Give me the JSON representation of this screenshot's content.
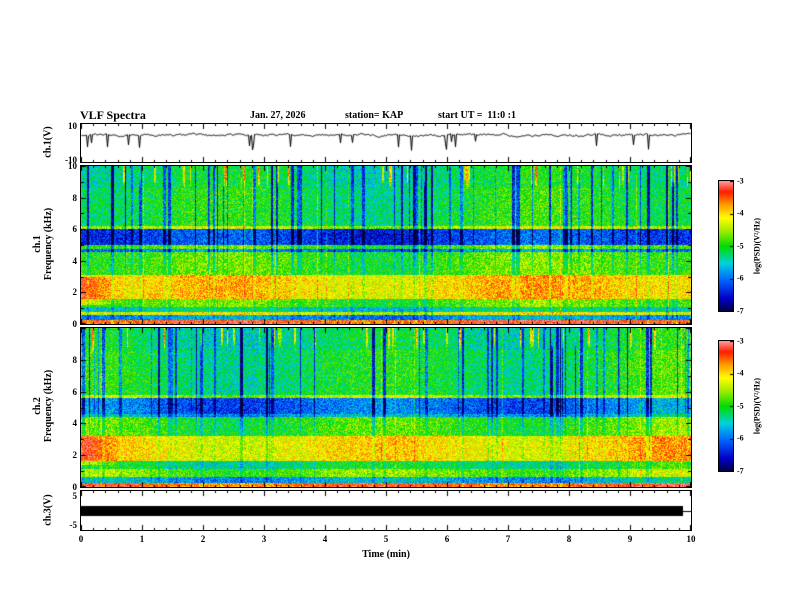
{
  "header": {
    "title": "VLF Spectra",
    "date": "Jan. 27, 2026",
    "station": "station= KAP",
    "start_ut": "start UT =  11:0 :1"
  },
  "axes": {
    "ch1_wave": {
      "label": "ch.1(V)",
      "top_tick": "10",
      "bottom_tick": "-10"
    },
    "spec1": {
      "channel": "ch.1",
      "freq_label": "Frequency (kHz)",
      "yticks": [
        "10",
        "8",
        "6",
        "4",
        "2",
        "0"
      ]
    },
    "spec2": {
      "channel": "ch.2",
      "freq_label": "Frequency (kHz)",
      "yticks": [
        "8",
        "6",
        "4",
        "2",
        "0"
      ]
    },
    "ch3_wave": {
      "label": "ch.3(V)",
      "top_tick": "5",
      "bottom_tick": "-5"
    },
    "x": {
      "label": "Time (min)",
      "ticks": [
        "0",
        "1",
        "2",
        "3",
        "4",
        "5",
        "6",
        "7",
        "8",
        "9",
        "10"
      ]
    }
  },
  "colorbar": {
    "label": "log(PSD)(V²/Hz)",
    "ticks": [
      "-3",
      "-4",
      "-5",
      "-6",
      "-7"
    ]
  },
  "chart_data": {
    "title": "VLF Spectra",
    "date": "Jan. 27, 2026",
    "station": "KAP",
    "start_ut": "11:0 :1",
    "x_axis": {
      "label": "Time (min)",
      "range": [
        0,
        10
      ],
      "unit": "min",
      "ticks": [
        0,
        1,
        2,
        3,
        4,
        5,
        6,
        7,
        8,
        9,
        10
      ]
    },
    "panels": [
      {
        "id": "ch1_waveform",
        "type": "line",
        "ylabel": "ch.1(V)",
        "yrange": [
          -10,
          10
        ],
        "seed": 20260127,
        "mean_v": 5.0,
        "noise_v": 2.4,
        "spike_prob": 0.02,
        "spike_depth_v": 7.5,
        "summary": "Amplitude trace fluctuating around +5 V with irregular negative spikes down to about -8 V"
      },
      {
        "id": "ch1_spectrogram",
        "type": "heatmap",
        "ylabel": "ch.1 Frequency (kHz)",
        "yrange": [
          0,
          10
        ],
        "seed": 11,
        "bands": [
          [
            0,
            0.25,
            -3.3
          ],
          [
            0.25,
            0.55,
            -5.7
          ],
          [
            0.55,
            0.75,
            -4.1
          ],
          [
            0.75,
            1.05,
            -5.3
          ],
          [
            1.05,
            1.6,
            -4.7
          ],
          [
            1.6,
            3.1,
            -3.9
          ],
          [
            3.1,
            4.55,
            -4.75
          ],
          [
            4.55,
            4.75,
            -5.8
          ],
          [
            4.75,
            5.0,
            -4.7
          ],
          [
            5.0,
            6.0,
            -6.15
          ],
          [
            6.0,
            6.18,
            -4.35
          ],
          [
            6.18,
            8.6,
            -5.0
          ],
          [
            8.6,
            10,
            -5.15
          ]
        ],
        "start_blob": {
          "x_frac": 0.07,
          "f_lo": 1.2,
          "f_hi": 3.0,
          "boost": 0.8
        },
        "summary": "Strong band near -3.9 log-PSD at 1.6-3.1 kHz, quiet blue band -6.2 at 5-6 kHz, speckled green background -5 above 6 kHz with dense vertical sferic streaks"
      },
      {
        "id": "ch2_spectrogram",
        "type": "heatmap",
        "ylabel": "ch.2 Frequency (kHz)",
        "yrange": [
          0,
          10
        ],
        "seed": 77,
        "bands": [
          [
            0,
            0.25,
            -3.4
          ],
          [
            0.25,
            0.6,
            -5.6
          ],
          [
            0.6,
            1.15,
            -4.6
          ],
          [
            1.15,
            1.65,
            -5.1
          ],
          [
            1.65,
            3.2,
            -4.0
          ],
          [
            3.2,
            4.4,
            -4.8
          ],
          [
            4.4,
            4.6,
            -5.6
          ],
          [
            4.6,
            5.6,
            -5.95
          ],
          [
            5.6,
            5.78,
            -4.4
          ],
          [
            5.78,
            8.6,
            -5.05
          ],
          [
            8.6,
            10,
            -5.2
          ]
        ],
        "start_blob": {
          "x_frac": 0.06,
          "f_lo": 1.4,
          "f_hi": 3.2,
          "boost": 0.7
        },
        "summary": "Similar structure to ch.1: orange band 1.7-3.2 kHz, quiet band 4.6-5.6 kHz, vertical streaking throughout"
      },
      {
        "id": "ch3_waveform",
        "type": "line",
        "ylabel": "ch.3(V)",
        "yrange": [
          -5,
          5
        ],
        "clip_v": 1.3,
        "summary": "Saturated/clipped signal: solid black band of roughly +/-1.3 V across the entire 10 minute record"
      }
    ],
    "colorbar": {
      "label": "log(PSD)(V²/Hz)",
      "range": [
        -7,
        -3
      ],
      "ticks": [
        -3,
        -4,
        -5,
        -6,
        -7
      ],
      "colormap": [
        [
          0,
          "#000041"
        ],
        [
          0.1,
          "#0000c8"
        ],
        [
          0.24,
          "#0064ff"
        ],
        [
          0.37,
          "#00d2dc"
        ],
        [
          0.5,
          "#00dc00"
        ],
        [
          0.62,
          "#a0eb00"
        ],
        [
          0.72,
          "#ffff00"
        ],
        [
          0.82,
          "#ff9b00"
        ],
        [
          0.92,
          "#ff1e00"
        ],
        [
          1,
          "#ff9696"
        ]
      ]
    },
    "events": {
      "dark_streak_prob": 0.09,
      "dark_streak_depth": [
        0.7,
        1.6
      ],
      "bright_top_prob": 0.05,
      "bright_top_amp": [
        0.8,
        1.6
      ],
      "broadband_bright_prob": 0.04,
      "broadband_amp": 0.5,
      "pixel_noise": 0.85
    }
  }
}
